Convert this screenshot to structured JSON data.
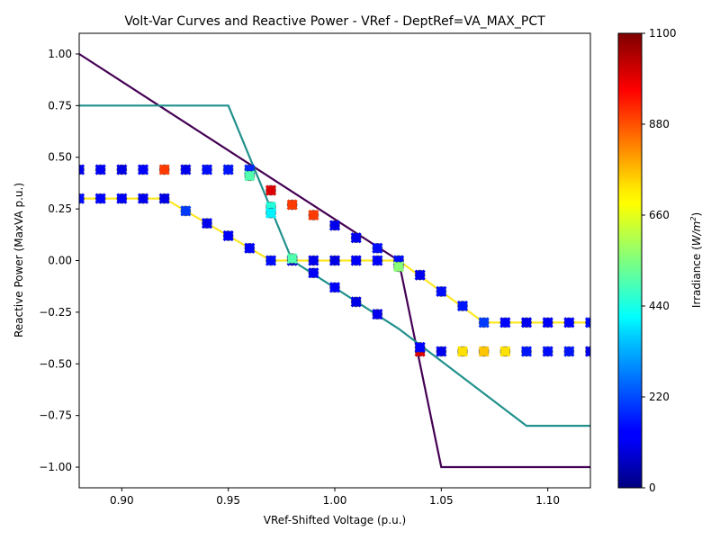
{
  "chart_data": {
    "type": "line",
    "title": "Volt-Var Curves and Reactive Power - VRef - DeptRef=VA_MAX_PCT",
    "xlabel": "VRef-Shifted Voltage (p.u.)",
    "ylabel": "Reactive Power (MaxVA p.u.)",
    "xlim": [
      0.88,
      1.12
    ],
    "ylim": [
      -1.1,
      1.1
    ],
    "x_ticks": [
      "0.90",
      "0.95",
      "1.00",
      "1.05",
      "1.10"
    ],
    "x_tick_values": [
      0.9,
      0.95,
      1.0,
      1.05,
      1.1
    ],
    "y_ticks": [
      "1.00",
      "0.75",
      "0.50",
      "0.25",
      "0.00",
      "−0.25",
      "−0.50",
      "−0.75",
      "−1.00"
    ],
    "y_tick_values": [
      1.0,
      0.75,
      0.5,
      0.25,
      0.0,
      -0.25,
      -0.5,
      -0.75,
      -1.0
    ],
    "colorbar": {
      "label": "Irradiance (W/m²)",
      "label_main": "Irradiance (",
      "label_unit": "W/m",
      "label_sup": "2",
      "label_end": ")",
      "min": 0,
      "max": 1100,
      "ticks": [
        "0",
        "220",
        "440",
        "660",
        "880",
        "1100"
      ],
      "tick_values": [
        0,
        220,
        440,
        660,
        880,
        1100
      ]
    },
    "curves": [
      {
        "name": "curve-1",
        "color": "#440154",
        "x": [
          0.88,
          1.03,
          1.05,
          1.12
        ],
        "y": [
          1.0,
          0.0,
          -1.0,
          -1.0
        ]
      },
      {
        "name": "curve-2",
        "color": "#21918c",
        "x": [
          0.88,
          0.95,
          0.98,
          1.03,
          1.09,
          1.12
        ],
        "y": [
          0.75,
          0.75,
          0.0,
          -0.33,
          -0.8,
          -0.8
        ]
      },
      {
        "name": "curve-3",
        "color": "#fde725",
        "x": [
          0.88,
          0.92,
          0.97,
          1.03,
          1.07,
          1.12
        ],
        "y": [
          0.3,
          0.3,
          0.0,
          0.0,
          -0.3,
          -0.3
        ]
      }
    ],
    "points": {
      "x": [
        0.88,
        0.89,
        0.9,
        0.91,
        0.92,
        0.93,
        0.94,
        0.95,
        0.96,
        0.88,
        0.89,
        0.9,
        0.91,
        0.92,
        0.93,
        0.94,
        0.95,
        0.96,
        0.97,
        0.97,
        0.97,
        0.98,
        0.98,
        0.98,
        0.99,
        0.99,
        0.99,
        1.0,
        1.0,
        1.0,
        1.01,
        1.01,
        1.01,
        1.02,
        1.02,
        1.02,
        1.03,
        1.03,
        1.03,
        1.04,
        1.04,
        1.04,
        1.05,
        1.05,
        1.06,
        1.06,
        1.07,
        1.07,
        1.08,
        1.08,
        1.09,
        1.09,
        1.1,
        1.1,
        1.11,
        1.11,
        1.12,
        1.12,
        0.96,
        0.97
      ],
      "y": [
        0.44,
        0.44,
        0.44,
        0.44,
        0.44,
        0.44,
        0.44,
        0.44,
        0.44,
        0.3,
        0.3,
        0.3,
        0.3,
        0.3,
        0.24,
        0.18,
        0.12,
        0.06,
        0.34,
        0.0,
        0.26,
        0.27,
        0.0,
        0.01,
        0.22,
        0.0,
        -0.06,
        0.17,
        0.0,
        -0.13,
        0.11,
        0.0,
        -0.2,
        0.06,
        0.0,
        -0.26,
        0.0,
        0.0,
        -0.03,
        -0.07,
        -0.44,
        -0.42,
        -0.15,
        -0.44,
        -0.22,
        -0.44,
        -0.3,
        -0.44,
        -0.3,
        -0.44,
        -0.3,
        -0.44,
        -0.3,
        -0.44,
        -0.3,
        -0.44,
        -0.3,
        -0.44,
        0.41,
        0.23
      ],
      "irr": [
        120,
        130,
        110,
        140,
        900,
        120,
        150,
        160,
        180,
        150,
        140,
        130,
        120,
        110,
        200,
        120,
        130,
        140,
        1000,
        150,
        450,
        900,
        100,
        500,
        900,
        120,
        130,
        120,
        110,
        140,
        120,
        130,
        110,
        150,
        140,
        120,
        160,
        150,
        560,
        120,
        1000,
        140,
        150,
        120,
        160,
        720,
        200,
        750,
        140,
        720,
        120,
        160,
        130,
        150,
        140,
        160,
        150,
        120,
        500,
        400
      ]
    }
  }
}
